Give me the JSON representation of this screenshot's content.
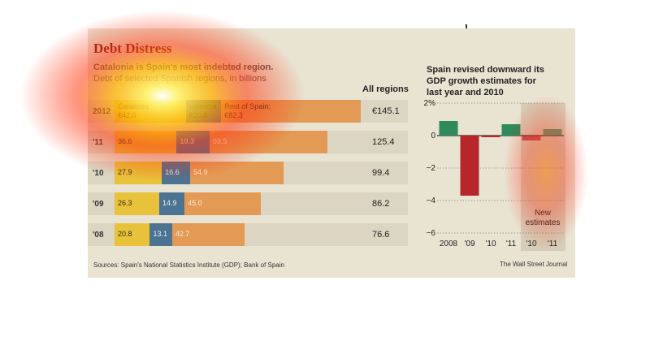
{
  "header": {
    "title": "Debt Distress",
    "subtitle_1": "Catalonia is Spain's most indebted region.",
    "subtitle_2": "Debt of selected Spanish regions, in billions",
    "column_label": "All regions"
  },
  "footer": {
    "source": "Sources: Spain's National Statistics Institute (GDP); Bank of Spain",
    "credit": "The Wall Street Journal"
  },
  "colors": {
    "catalonia": "#e8c23a",
    "valencia": "#4d7392",
    "rest": "#e39a54",
    "positive": "#2f8a5c",
    "negative": "#b7262a",
    "title": "#8a1a12",
    "estimate_band": "#d6ccb7"
  },
  "chart_data": [
    {
      "type": "bar",
      "stacked": true,
      "orientation": "horizontal",
      "title": "Debt Distress",
      "categories": [
        "2012",
        "'11",
        "'10",
        "'09",
        "'08"
      ],
      "series": [
        {
          "name": "Catalonia",
          "values_labels": [
            "€42.0",
            "36.6",
            "27.9",
            "26.3",
            "20.8"
          ],
          "values": [
            42.0,
            36.6,
            27.9,
            26.3,
            20.8
          ]
        },
        {
          "name": "Valencia",
          "values_labels": [
            "€20.8",
            "19.3",
            "16.6",
            "14.9",
            "13.1"
          ],
          "values": [
            20.8,
            19.3,
            16.6,
            14.9,
            13.1
          ]
        },
        {
          "name": "Rest of Spain",
          "values_labels": [
            "€82.3",
            "69.5",
            "54.9",
            "45.0",
            "42.7"
          ],
          "values": [
            82.3,
            69.5,
            54.9,
            45.0,
            42.7
          ]
        }
      ],
      "first_row_series_labels": [
        "Catalonia",
        "Valencia",
        "Rest of Spain:"
      ],
      "totals": [
        "€145.1",
        "125.4",
        "99.4",
        "86.2",
        "76.6"
      ]
    },
    {
      "type": "bar",
      "title": "Spain revised downward its GDP growth estimates for last year and 2010",
      "categories": [
        "2008",
        "'09",
        "'10",
        "'11",
        "'10",
        "'11"
      ],
      "values": [
        0.9,
        -3.7,
        -0.1,
        0.7,
        -0.3,
        0.4
      ],
      "ylim": [
        -6,
        2
      ],
      "yticks": [
        "2%",
        "0",
        "−2",
        "−4",
        "−6"
      ],
      "annotation": [
        "New",
        "estimates"
      ]
    }
  ]
}
